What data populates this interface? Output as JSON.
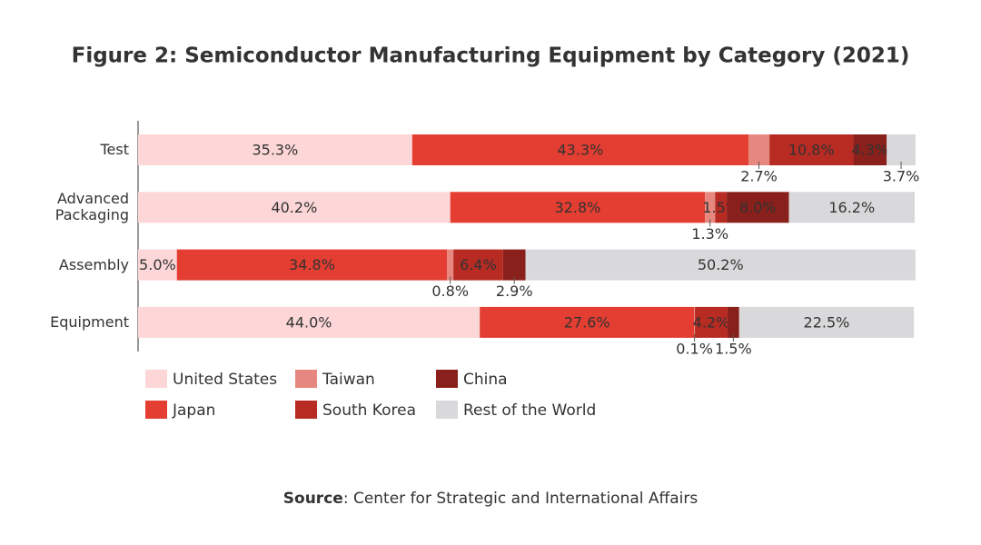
{
  "chart_data": {
    "type": "bar",
    "orientation": "horizontal",
    "stacked": true,
    "title": "Figure 2: Semiconductor Manufacturing Equipment by Category (2021)",
    "categories": [
      "Test",
      "Advanced Packaging",
      "Assembly",
      "Equipment"
    ],
    "xlim": [
      0,
      100
    ],
    "legend": "bottom",
    "series": [
      {
        "name": "United States",
        "color": "#fdd6d7",
        "values": [
          35.3,
          40.2,
          5.0,
          44.0
        ],
        "value_labels": [
          "35.3%",
          "40.2%",
          "5.0%",
          "44.0%"
        ]
      },
      {
        "name": "Japan",
        "color": "#e43d31",
        "values": [
          43.3,
          32.8,
          34.8,
          27.6
        ],
        "value_labels": [
          "43.3%",
          "32.8%",
          "34.8%",
          "27.6%"
        ]
      },
      {
        "name": "Taiwan",
        "color": "#e6887f",
        "values": [
          2.7,
          1.3,
          0.8,
          0.1
        ],
        "value_labels": [
          "2.7%",
          "1.3%",
          "0.8%",
          "0.1%"
        ]
      },
      {
        "name": "South Korea",
        "color": "#b72b23",
        "values": [
          10.8,
          1.5,
          6.4,
          4.2
        ],
        "value_labels": [
          "10.8%",
          "1.5%",
          "6.4%",
          "4.2%"
        ]
      },
      {
        "name": "China",
        "color": "#8a201b",
        "values": [
          4.3,
          8.0,
          2.9,
          1.5
        ],
        "value_labels": [
          "4.3%",
          "8.0%",
          "2.9%",
          "1.5%"
        ]
      },
      {
        "name": "Rest of the World",
        "color": "#d9d9db",
        "values": [
          3.7,
          16.2,
          50.2,
          22.5
        ],
        "value_labels": [
          "3.7%",
          "16.2%",
          "50.2%",
          "22.5%"
        ]
      }
    ],
    "source_label": "Source",
    "source_text": ": Center for Strategic and International Affairs"
  }
}
